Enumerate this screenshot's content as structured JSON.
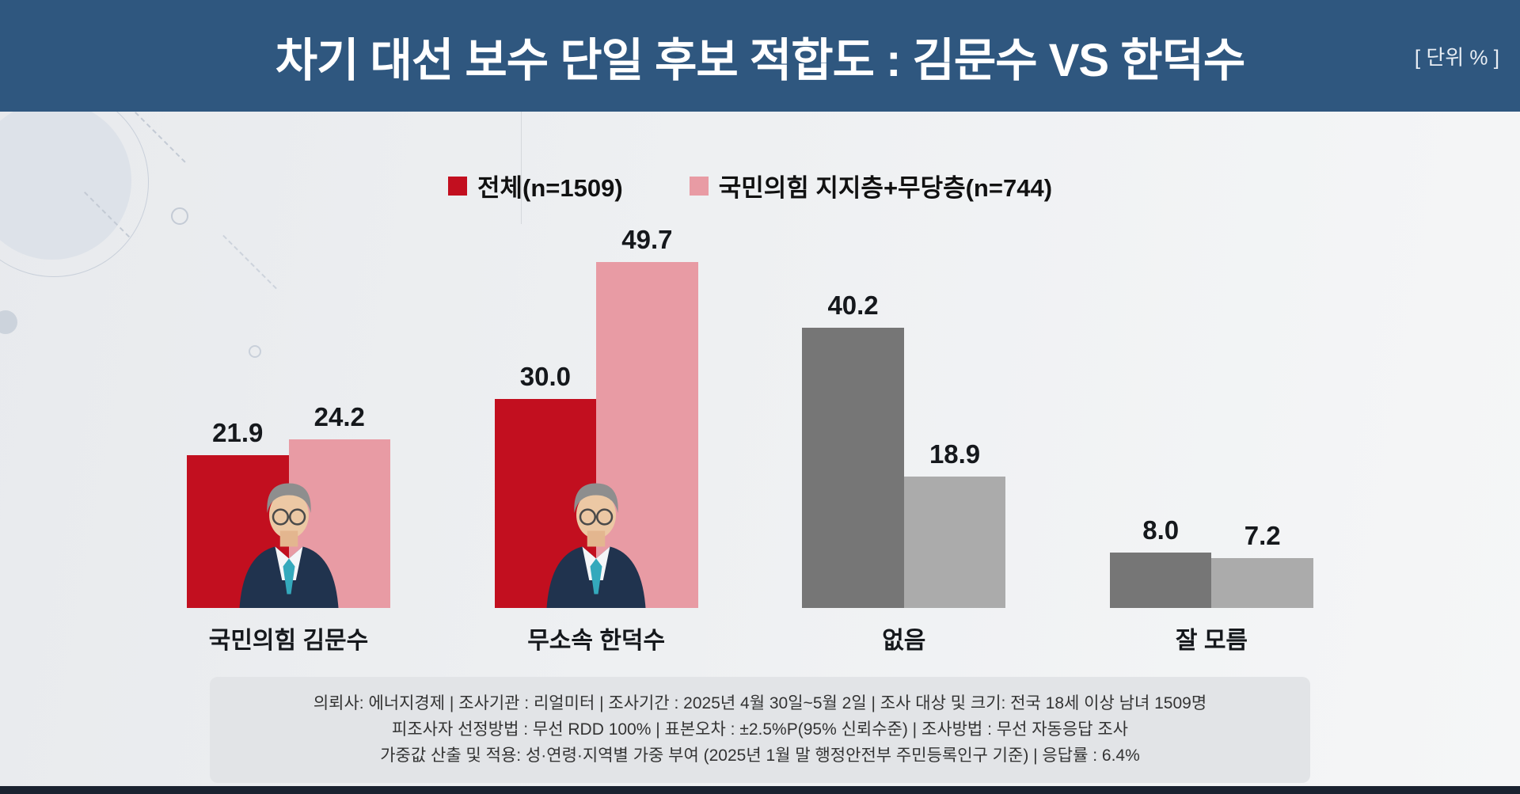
{
  "header": {
    "title": "차기 대선 보수 단일 후보 적합도 : 김문수 VS 한덕수",
    "unit_label": "[ 단위 % ]"
  },
  "legend": [
    {
      "label": "전체(n=1509)",
      "color": "#c20f1f"
    },
    {
      "label": "국민의힘 지지층+무당층(n=744)",
      "color": "#e89ba4"
    }
  ],
  "chart_data": {
    "type": "bar",
    "title": "차기 대선 보수 단일 후보 적합도 : 김문수 VS 한덕수",
    "unit": "%",
    "categories": [
      "국민의힘 김문수",
      "무소속 한덕수",
      "없음",
      "잘 모름"
    ],
    "series": [
      {
        "name": "전체(n=1509)",
        "values": [
          21.9,
          30.0,
          40.2,
          8.0
        ],
        "colors": [
          "#c20f1f",
          "#c20f1f",
          "#767676",
          "#767676"
        ]
      },
      {
        "name": "국민의힘 지지층+무당층(n=744)",
        "values": [
          24.2,
          49.7,
          18.9,
          7.2
        ],
        "colors": [
          "#e89ba4",
          "#e89ba4",
          "#ababab",
          "#ababab"
        ]
      }
    ],
    "ylim": [
      0,
      55
    ],
    "grid": false,
    "legend_position": "top",
    "photos": [
      true,
      true,
      false,
      false
    ]
  },
  "footer": {
    "lines": [
      "의뢰사: 에너지경제 | 조사기관 : 리얼미터  |  조사기간 : 2025년 4월 30일~5월 2일 | 조사 대상 및 크기: 전국 18세 이상 남녀 1509명",
      "피조사자 선정방법 : 무선 RDD 100% | 표본오차 : ±2.5%P(95% 신뢰수준) | 조사방법 : 무선 자동응답 조사",
      "가중값 산출 및 적용: 성·연령·지역별 가중 부여 (2025년 1월 말 행정안전부 주민등록인구 기준) | 응답률 : 6.4%"
    ]
  }
}
